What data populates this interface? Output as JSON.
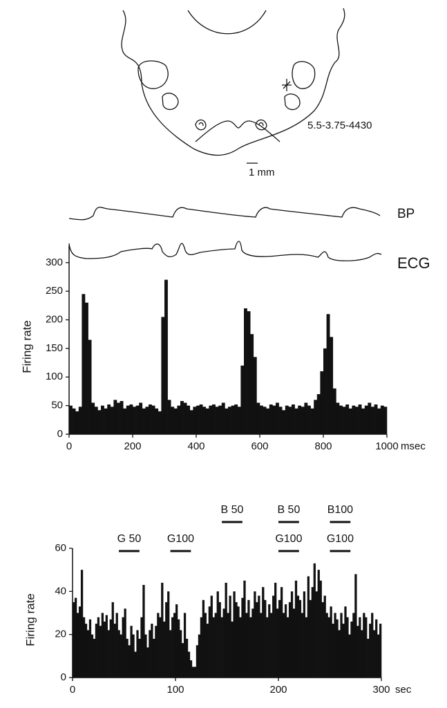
{
  "diagram": {
    "coordinates": "5.5-3.75-4430",
    "scale_bar": "1 mm"
  },
  "traces": [
    "BP",
    "ECG"
  ],
  "chart_data": [
    {
      "type": "histogram",
      "y_label": "Firing rate",
      "x_label": "msec",
      "color": "#111111",
      "xlim": [
        0,
        1000
      ],
      "xticks": [
        0,
        200,
        400,
        600,
        800,
        1000
      ],
      "ylim": [
        0,
        330
      ],
      "yticks": [
        0,
        50,
        100,
        150,
        200,
        250,
        300
      ],
      "bins": [
        0,
        10,
        20,
        30,
        40,
        50,
        60,
        70,
        80,
        90,
        100,
        110,
        120,
        130,
        140,
        150,
        160,
        170,
        180,
        190,
        200,
        210,
        220,
        230,
        240,
        250,
        260,
        270,
        280,
        290,
        300,
        310,
        320,
        330,
        340,
        350,
        360,
        370,
        380,
        390,
        400,
        410,
        420,
        430,
        440,
        450,
        460,
        470,
        480,
        490,
        500,
        510,
        520,
        530,
        540,
        550,
        560,
        570,
        580,
        590,
        600,
        610,
        620,
        630,
        640,
        650,
        660,
        670,
        680,
        690,
        700,
        710,
        720,
        730,
        740,
        750,
        760,
        770,
        780,
        790,
        800,
        810,
        820,
        830,
        840,
        850,
        860,
        870,
        880,
        890,
        900,
        910,
        920,
        930,
        940,
        950,
        960,
        970,
        980,
        990,
        1000
      ],
      "values": [
        50,
        45,
        40,
        48,
        245,
        230,
        165,
        55,
        48,
        42,
        50,
        45,
        52,
        48,
        60,
        55,
        58,
        45,
        50,
        52,
        48,
        50,
        55,
        45,
        48,
        52,
        50,
        45,
        40,
        205,
        270,
        60,
        48,
        45,
        50,
        58,
        55,
        50,
        42,
        48,
        50,
        52,
        48,
        45,
        50,
        52,
        48,
        50,
        55,
        45,
        48,
        50,
        52,
        48,
        120,
        220,
        215,
        175,
        135,
        55,
        50,
        48,
        45,
        52,
        50,
        55,
        48,
        42,
        50,
        48,
        52,
        45,
        50,
        48,
        55,
        50,
        45,
        60,
        70,
        110,
        150,
        210,
        170,
        80,
        55,
        50,
        48,
        52,
        45,
        50,
        48,
        52,
        45,
        50,
        55,
        48,
        52,
        45,
        50,
        48
      ]
    },
    {
      "type": "histogram",
      "y_label": "Firing rate",
      "x_label": "sec",
      "color": "#111111",
      "xlim": [
        0,
        300
      ],
      "xticks": [
        0,
        100,
        200,
        300
      ],
      "ylim": [
        0,
        60
      ],
      "yticks": [
        0,
        20,
        40,
        60
      ],
      "annotations": [
        {
          "text": "G 50",
          "x": [
            45,
            65
          ]
        },
        {
          "text": "G100",
          "x": [
            95,
            115
          ]
        },
        {
          "text": "B 50",
          "x": [
            145,
            165
          ]
        },
        {
          "text": "B 50",
          "x": [
            200,
            220
          ]
        },
        {
          "text": "G100",
          "x": [
            200,
            220
          ]
        },
        {
          "text": "B100",
          "x": [
            250,
            270
          ]
        },
        {
          "text": "G100",
          "x": [
            250,
            270
          ]
        }
      ],
      "bins": [
        0,
        2,
        4,
        6,
        8,
        10,
        12,
        14,
        16,
        18,
        20,
        22,
        24,
        26,
        28,
        30,
        32,
        34,
        36,
        38,
        40,
        42,
        44,
        46,
        48,
        50,
        52,
        54,
        56,
        58,
        60,
        62,
        64,
        66,
        68,
        70,
        72,
        74,
        76,
        78,
        80,
        82,
        84,
        86,
        88,
        90,
        92,
        94,
        96,
        98,
        100,
        102,
        104,
        106,
        108,
        110,
        112,
        114,
        116,
        118,
        120,
        122,
        124,
        126,
        128,
        130,
        132,
        134,
        136,
        138,
        140,
        142,
        144,
        146,
        148,
        150,
        152,
        154,
        156,
        158,
        160,
        162,
        164,
        166,
        168,
        170,
        172,
        174,
        176,
        178,
        180,
        182,
        184,
        186,
        188,
        190,
        192,
        194,
        196,
        198,
        200,
        202,
        204,
        206,
        208,
        210,
        212,
        214,
        216,
        218,
        220,
        222,
        224,
        226,
        228,
        230,
        232,
        234,
        236,
        238,
        240,
        242,
        244,
        246,
        248,
        250,
        252,
        254,
        256,
        258,
        260,
        262,
        264,
        266,
        268,
        270,
        272,
        274,
        276,
        278,
        280,
        282,
        284,
        286,
        288,
        290,
        292,
        294,
        296,
        298,
        300
      ],
      "values": [
        35,
        37,
        30,
        33,
        50,
        28,
        25,
        22,
        27,
        20,
        18,
        25,
        28,
        24,
        30,
        26,
        29,
        22,
        27,
        35,
        25,
        30,
        22,
        20,
        28,
        32,
        18,
        15,
        24,
        20,
        12,
        22,
        18,
        28,
        43,
        20,
        14,
        22,
        25,
        18,
        24,
        30,
        28,
        44,
        26,
        35,
        40,
        22,
        28,
        30,
        34,
        27,
        22,
        16,
        30,
        18,
        12,
        8,
        5,
        5,
        15,
        20,
        28,
        36,
        30,
        25,
        33,
        38,
        28,
        30,
        40,
        35,
        28,
        32,
        44,
        30,
        38,
        26,
        40,
        35,
        33,
        28,
        37,
        45,
        30,
        36,
        28,
        32,
        40,
        35,
        38,
        30,
        42,
        36,
        28,
        34,
        30,
        38,
        44,
        32,
        36,
        42,
        30,
        34,
        28,
        35,
        40,
        32,
        45,
        38,
        36,
        30,
        40,
        28,
        47,
        36,
        42,
        53,
        40,
        50,
        45,
        35,
        38,
        30,
        28,
        33,
        25,
        30,
        27,
        22,
        30,
        25,
        33,
        28,
        20,
        26,
        30,
        48,
        24,
        28,
        22,
        30,
        28,
        18,
        25,
        30,
        22,
        27,
        20,
        25
      ]
    }
  ]
}
